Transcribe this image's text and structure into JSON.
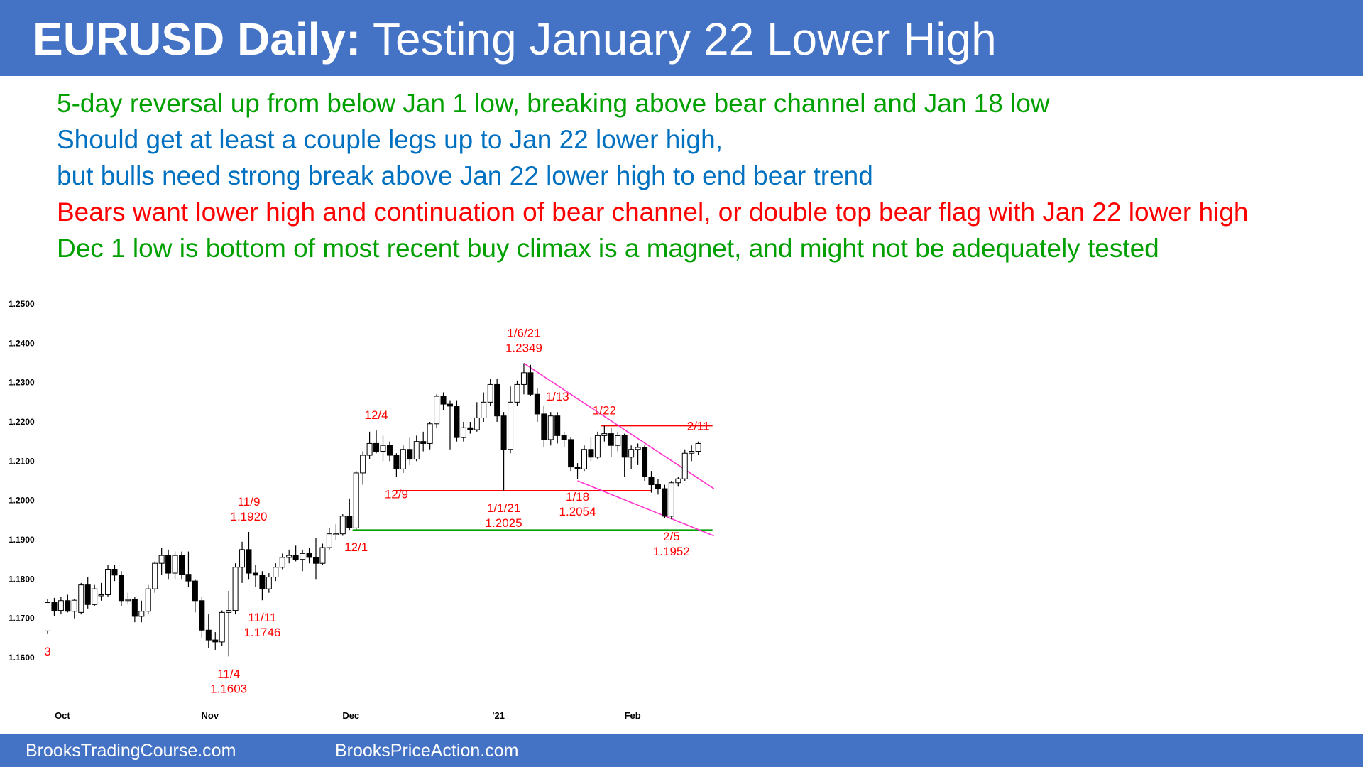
{
  "header": {
    "title_bold": "EURUSD Daily:",
    "title_rest": "Testing January 22 Lower High"
  },
  "notes": [
    {
      "text": "5-day reversal up from below Jan 1 low, breaking above bear channel and Jan 18 low",
      "color": "#00a000"
    },
    {
      "text": "Should get at least a couple legs up to Jan 22 lower high,",
      "color": "#0070c0"
    },
    {
      "text": "but bulls need strong break above Jan 22 lower high to end bear trend",
      "color": "#0070c0"
    },
    {
      "text": "Bears want lower high and continuation of bear channel, or double top bear flag with Jan 22 lower high",
      "color": "#ff0000"
    },
    {
      "text": "Dec 1 low is bottom of most recent buy climax is a magnet, and might not be adequately tested",
      "color": "#00a000"
    }
  ],
  "footer": {
    "left": "BrooksTradingCourse.com",
    "right": "BrooksPriceAction.com"
  },
  "colors": {
    "header_bg": "#4472c4",
    "annotation": "#ff0000",
    "channel_line": "#ff33cc",
    "support_line": "#00a000",
    "bull_candle": "#ffffff",
    "bear_candle": "#000000"
  },
  "chart_data": {
    "type": "candlestick",
    "instrument": "EURUSD",
    "timeframe": "Daily",
    "ylim": [
      1.155,
      1.25
    ],
    "y_ticks": [
      "1.1600",
      "1.1700",
      "1.1800",
      "1.1900",
      "1.2000",
      "1.2100",
      "1.2200",
      "1.2300",
      "1.2400",
      "1.2500"
    ],
    "x_ticks": [
      {
        "label": "Oct",
        "index": 2
      },
      {
        "label": "Nov",
        "index": 24
      },
      {
        "label": "Dec",
        "index": 45
      },
      {
        "label": "'21",
        "index": 67
      },
      {
        "label": "Feb",
        "index": 87
      }
    ],
    "ohlc": [
      {
        "date": "9/28",
        "o": 1.1668,
        "h": 1.175,
        "l": 1.166,
        "c": 1.174
      },
      {
        "date": "9/29",
        "o": 1.174,
        "h": 1.1752,
        "l": 1.1705,
        "c": 1.172
      },
      {
        "date": "9/30",
        "o": 1.172,
        "h": 1.1755,
        "l": 1.171,
        "c": 1.1745
      },
      {
        "date": "10/1",
        "o": 1.1745,
        "h": 1.176,
        "l": 1.1715,
        "c": 1.1718
      },
      {
        "date": "10/2",
        "o": 1.1718,
        "h": 1.175,
        "l": 1.17,
        "c": 1.1746
      },
      {
        "date": "10/5",
        "o": 1.1715,
        "h": 1.179,
        "l": 1.171,
        "c": 1.1785
      },
      {
        "date": "10/6",
        "o": 1.1785,
        "h": 1.1805,
        "l": 1.1725,
        "c": 1.1735
      },
      {
        "date": "10/7",
        "o": 1.1735,
        "h": 1.1785,
        "l": 1.173,
        "c": 1.1775
      },
      {
        "date": "10/8",
        "o": 1.1758,
        "h": 1.179,
        "l": 1.1745,
        "c": 1.176
      },
      {
        "date": "10/9",
        "o": 1.176,
        "h": 1.1835,
        "l": 1.1755,
        "c": 1.1825
      },
      {
        "date": "10/12",
        "o": 1.1825,
        "h": 1.1835,
        "l": 1.1795,
        "c": 1.181
      },
      {
        "date": "10/13",
        "o": 1.181,
        "h": 1.182,
        "l": 1.173,
        "c": 1.1745
      },
      {
        "date": "10/14",
        "o": 1.1745,
        "h": 1.1765,
        "l": 1.1735,
        "c": 1.1748
      },
      {
        "date": "10/15",
        "o": 1.1748,
        "h": 1.1755,
        "l": 1.169,
        "c": 1.1705
      },
      {
        "date": "10/16",
        "o": 1.1705,
        "h": 1.1745,
        "l": 1.169,
        "c": 1.1718
      },
      {
        "date": "10/19",
        "o": 1.1718,
        "h": 1.1785,
        "l": 1.171,
        "c": 1.1775
      },
      {
        "date": "10/20",
        "o": 1.1775,
        "h": 1.1845,
        "l": 1.1765,
        "c": 1.184
      },
      {
        "date": "10/21",
        "o": 1.184,
        "h": 1.188,
        "l": 1.181,
        "c": 1.186
      },
      {
        "date": "10/22",
        "o": 1.186,
        "h": 1.1875,
        "l": 1.18,
        "c": 1.1815
      },
      {
        "date": "10/23",
        "o": 1.1815,
        "h": 1.187,
        "l": 1.18,
        "c": 1.186
      },
      {
        "date": "10/26",
        "o": 1.186,
        "h": 1.187,
        "l": 1.18,
        "c": 1.1812
      },
      {
        "date": "10/27",
        "o": 1.1812,
        "h": 1.187,
        "l": 1.178,
        "c": 1.1795
      },
      {
        "date": "10/28",
        "o": 1.1795,
        "h": 1.18,
        "l": 1.1715,
        "c": 1.1745
      },
      {
        "date": "10/29",
        "o": 1.1745,
        "h": 1.1755,
        "l": 1.165,
        "c": 1.167
      },
      {
        "date": "10/30",
        "o": 1.167,
        "h": 1.171,
        "l": 1.1625,
        "c": 1.1645
      },
      {
        "date": "11/2",
        "o": 1.1645,
        "h": 1.1665,
        "l": 1.162,
        "c": 1.164
      },
      {
        "date": "11/3",
        "o": 1.164,
        "h": 1.172,
        "l": 1.163,
        "c": 1.1715
      },
      {
        "date": "11/4",
        "o": 1.1715,
        "h": 1.177,
        "l": 1.1603,
        "c": 1.172
      },
      {
        "date": "11/5",
        "o": 1.172,
        "h": 1.184,
        "l": 1.171,
        "c": 1.183
      },
      {
        "date": "11/6",
        "o": 1.183,
        "h": 1.1895,
        "l": 1.179,
        "c": 1.1875
      },
      {
        "date": "11/9",
        "o": 1.1875,
        "h": 1.192,
        "l": 1.18,
        "c": 1.1815
      },
      {
        "date": "11/10",
        "o": 1.1815,
        "h": 1.1835,
        "l": 1.178,
        "c": 1.181
      },
      {
        "date": "11/11",
        "o": 1.181,
        "h": 1.182,
        "l": 1.1746,
        "c": 1.1775
      },
      {
        "date": "11/12",
        "o": 1.1775,
        "h": 1.1815,
        "l": 1.1765,
        "c": 1.1805
      },
      {
        "date": "11/13",
        "o": 1.1805,
        "h": 1.184,
        "l": 1.1795,
        "c": 1.183
      },
      {
        "date": "11/16",
        "o": 1.183,
        "h": 1.1865,
        "l": 1.1825,
        "c": 1.1855
      },
      {
        "date": "11/17",
        "o": 1.1855,
        "h": 1.1875,
        "l": 1.184,
        "c": 1.186
      },
      {
        "date": "11/18",
        "o": 1.186,
        "h": 1.1885,
        "l": 1.1845,
        "c": 1.185
      },
      {
        "date": "11/19",
        "o": 1.185,
        "h": 1.1875,
        "l": 1.182,
        "c": 1.1865
      },
      {
        "date": "11/20",
        "o": 1.1865,
        "h": 1.188,
        "l": 1.184,
        "c": 1.1855
      },
      {
        "date": "11/23",
        "o": 1.1855,
        "h": 1.1905,
        "l": 1.18,
        "c": 1.184
      },
      {
        "date": "11/24",
        "o": 1.184,
        "h": 1.189,
        "l": 1.1835,
        "c": 1.188
      },
      {
        "date": "11/25",
        "o": 1.188,
        "h": 1.193,
        "l": 1.1875,
        "c": 1.1915
      },
      {
        "date": "11/26",
        "o": 1.1915,
        "h": 1.194,
        "l": 1.19,
        "c": 1.1915
      },
      {
        "date": "11/27",
        "o": 1.1915,
        "h": 1.1965,
        "l": 1.191,
        "c": 1.196
      },
      {
        "date": "11/30",
        "o": 1.196,
        "h": 1.2005,
        "l": 1.1925,
        "c": 1.193
      },
      {
        "date": "12/1",
        "o": 1.193,
        "h": 1.2075,
        "l": 1.1925,
        "c": 1.207
      },
      {
        "date": "12/2",
        "o": 1.207,
        "h": 1.2125,
        "l": 1.204,
        "c": 1.2115
      },
      {
        "date": "12/3",
        "o": 1.2115,
        "h": 1.2175,
        "l": 1.2105,
        "c": 1.2145
      },
      {
        "date": "12/4",
        "o": 1.2145,
        "h": 1.2178,
        "l": 1.212,
        "c": 1.2125
      },
      {
        "date": "12/7",
        "o": 1.2125,
        "h": 1.2165,
        "l": 1.21,
        "c": 1.214
      },
      {
        "date": "12/8",
        "o": 1.214,
        "h": 1.215,
        "l": 1.21,
        "c": 1.2115
      },
      {
        "date": "12/9",
        "o": 1.2115,
        "h": 1.212,
        "l": 1.206,
        "c": 1.208
      },
      {
        "date": "12/10",
        "o": 1.208,
        "h": 1.214,
        "l": 1.207,
        "c": 1.213
      },
      {
        "date": "12/11",
        "o": 1.213,
        "h": 1.216,
        "l": 1.209,
        "c": 1.2105
      },
      {
        "date": "12/14",
        "o": 1.2105,
        "h": 1.2165,
        "l": 1.21,
        "c": 1.215
      },
      {
        "date": "12/15",
        "o": 1.215,
        "h": 1.2175,
        "l": 1.2125,
        "c": 1.2145
      },
      {
        "date": "12/16",
        "o": 1.2145,
        "h": 1.22,
        "l": 1.213,
        "c": 1.2195
      },
      {
        "date": "12/17",
        "o": 1.2195,
        "h": 1.227,
        "l": 1.2185,
        "c": 1.2265
      },
      {
        "date": "12/18",
        "o": 1.2265,
        "h": 1.2275,
        "l": 1.223,
        "c": 1.2245
      },
      {
        "date": "12/21",
        "o": 1.2245,
        "h": 1.2255,
        "l": 1.213,
        "c": 1.224
      },
      {
        "date": "12/22",
        "o": 1.224,
        "h": 1.2255,
        "l": 1.215,
        "c": 1.216
      },
      {
        "date": "12/23",
        "o": 1.216,
        "h": 1.22,
        "l": 1.215,
        "c": 1.2185
      },
      {
        "date": "12/24",
        "o": 1.2185,
        "h": 1.22,
        "l": 1.217,
        "c": 1.218
      },
      {
        "date": "12/28",
        "o": 1.218,
        "h": 1.225,
        "l": 1.2175,
        "c": 1.221
      },
      {
        "date": "12/29",
        "o": 1.221,
        "h": 1.2275,
        "l": 1.22,
        "c": 1.225
      },
      {
        "date": "12/30",
        "o": 1.225,
        "h": 1.231,
        "l": 1.224,
        "c": 1.2295
      },
      {
        "date": "12/31",
        "o": 1.2295,
        "h": 1.231,
        "l": 1.22,
        "c": 1.2215
      },
      {
        "date": "1/1/21",
        "o": 1.2215,
        "h": 1.2225,
        "l": 1.2025,
        "c": 1.213
      },
      {
        "date": "1/4",
        "o": 1.213,
        "h": 1.229,
        "l": 1.212,
        "c": 1.225
      },
      {
        "date": "1/5",
        "o": 1.225,
        "h": 1.2305,
        "l": 1.224,
        "c": 1.2295
      },
      {
        "date": "1/6",
        "o": 1.2295,
        "h": 1.2349,
        "l": 1.227,
        "c": 1.2325
      },
      {
        "date": "1/7",
        "o": 1.2325,
        "h": 1.2345,
        "l": 1.2265,
        "c": 1.227
      },
      {
        "date": "1/8",
        "o": 1.227,
        "h": 1.2285,
        "l": 1.22,
        "c": 1.222
      },
      {
        "date": "1/11",
        "o": 1.222,
        "h": 1.224,
        "l": 1.2135,
        "c": 1.2155
      },
      {
        "date": "1/12",
        "o": 1.2155,
        "h": 1.2225,
        "l": 1.214,
        "c": 1.2215
      },
      {
        "date": "1/13",
        "o": 1.2215,
        "h": 1.2225,
        "l": 1.2145,
        "c": 1.2165
      },
      {
        "date": "1/14",
        "o": 1.2165,
        "h": 1.2175,
        "l": 1.2135,
        "c": 1.2155
      },
      {
        "date": "1/15",
        "o": 1.2155,
        "h": 1.216,
        "l": 1.2075,
        "c": 1.2085
      },
      {
        "date": "1/18",
        "o": 1.2085,
        "h": 1.2095,
        "l": 1.2054,
        "c": 1.208
      },
      {
        "date": "1/19",
        "o": 1.208,
        "h": 1.214,
        "l": 1.2075,
        "c": 1.213
      },
      {
        "date": "1/20",
        "o": 1.213,
        "h": 1.216,
        "l": 1.21,
        "c": 1.211
      },
      {
        "date": "1/21",
        "o": 1.211,
        "h": 1.2175,
        "l": 1.2105,
        "c": 1.2165
      },
      {
        "date": "1/22",
        "o": 1.2165,
        "h": 1.219,
        "l": 1.215,
        "c": 1.217
      },
      {
        "date": "1/25",
        "o": 1.217,
        "h": 1.2185,
        "l": 1.211,
        "c": 1.214
      },
      {
        "date": "1/26",
        "o": 1.214,
        "h": 1.2175,
        "l": 1.2125,
        "c": 1.2165
      },
      {
        "date": "1/27",
        "o": 1.2165,
        "h": 1.217,
        "l": 1.206,
        "c": 1.211
      },
      {
        "date": "1/28",
        "o": 1.211,
        "h": 1.214,
        "l": 1.208,
        "c": 1.213
      },
      {
        "date": "1/29",
        "o": 1.213,
        "h": 1.2145,
        "l": 1.209,
        "c": 1.2135
      },
      {
        "date": "2/1",
        "o": 1.2135,
        "h": 1.214,
        "l": 1.205,
        "c": 1.206
      },
      {
        "date": "2/2",
        "o": 1.206,
        "h": 1.2075,
        "l": 1.202,
        "c": 1.204
      },
      {
        "date": "2/3",
        "o": 1.204,
        "h": 1.2055,
        "l": 1.2015,
        "c": 1.203
      },
      {
        "date": "2/4",
        "o": 1.203,
        "h": 1.204,
        "l": 1.1955,
        "c": 1.196
      },
      {
        "date": "2/5",
        "o": 1.196,
        "h": 1.205,
        "l": 1.1952,
        "c": 1.2045
      },
      {
        "date": "2/8",
        "o": 1.2045,
        "h": 1.206,
        "l": 1.2035,
        "c": 1.2055
      },
      {
        "date": "2/9",
        "o": 1.2055,
        "h": 1.213,
        "l": 1.205,
        "c": 1.212
      },
      {
        "date": "2/10",
        "o": 1.212,
        "h": 1.214,
        "l": 1.21,
        "c": 1.2125
      },
      {
        "date": "2/11",
        "o": 1.2125,
        "h": 1.215,
        "l": 1.2115,
        "c": 1.2145
      }
    ],
    "annotations": [
      {
        "date": "11/4",
        "lines": [
          "11/4",
          "1.1603"
        ],
        "position": "below"
      },
      {
        "date": "11/9",
        "lines": [
          "11/9",
          "1.1920"
        ],
        "position": "above"
      },
      {
        "date": "11/11",
        "lines": [
          "11/11",
          "1.1746"
        ],
        "position": "below"
      },
      {
        "date": "12/1",
        "lines": [
          "12/1"
        ],
        "position": "below"
      },
      {
        "date": "12/4",
        "lines": [
          "12/4"
        ],
        "position": "above"
      },
      {
        "date": "12/9",
        "lines": [
          "12/9"
        ],
        "position": "below"
      },
      {
        "date": "1/1/21",
        "lines": [
          "1/1/21",
          "1.2025"
        ],
        "position": "below"
      },
      {
        "date": "1/6",
        "lines": [
          "1/6/21",
          "1.2349"
        ],
        "position": "above"
      },
      {
        "date": "1/13",
        "lines": [
          "1/13"
        ],
        "position": "above"
      },
      {
        "date": "1/18",
        "lines": [
          "1/18",
          "1.2054"
        ],
        "position": "below"
      },
      {
        "date": "1/22",
        "lines": [
          "1/22"
        ],
        "position": "above"
      },
      {
        "date": "2/5",
        "lines": [
          "2/5",
          "1.1952"
        ],
        "position": "below"
      },
      {
        "date": "2/11",
        "lines": [
          "2/11"
        ],
        "position": "above"
      },
      {
        "date": "9/28",
        "lines": [
          "3"
        ],
        "position": "below"
      }
    ],
    "horizontal_lines": [
      {
        "name": "dec-1-low-line",
        "price": 1.1925,
        "from": "12/1",
        "to": "2/11",
        "color": "#00a000"
      },
      {
        "name": "dec-9-jan-18-line",
        "price": 1.2025,
        "from": "12/9",
        "to": "1/29",
        "color": "#ff0000"
      },
      {
        "name": "jan-22-high-line",
        "price": 1.219,
        "from": "1/22",
        "to": "2/11",
        "color": "#ff0000"
      }
    ],
    "trend_lines": [
      {
        "name": "upper-channel-line",
        "from_date": "1/6",
        "from_price": 1.2349,
        "to_date": "2/11",
        "to_price": 1.203,
        "color": "#ff33cc"
      },
      {
        "name": "lower-channel-line",
        "from_date": "1/18",
        "from_price": 1.205,
        "to_date": "2/11",
        "to_price": 1.191,
        "color": "#ff33cc"
      }
    ]
  }
}
